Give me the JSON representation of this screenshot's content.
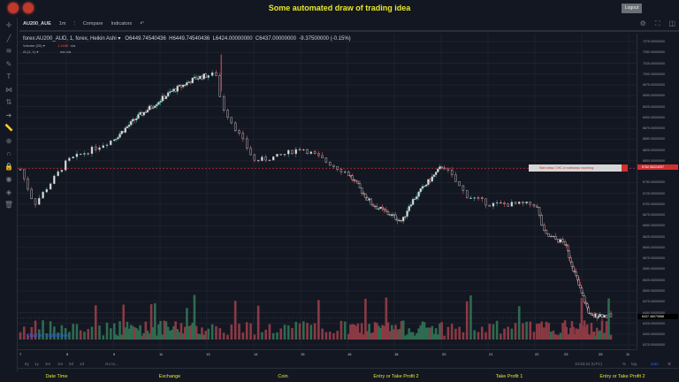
{
  "header": {
    "title": "Some automated draw of trading idea",
    "logout": "Logout"
  },
  "toolbar": {
    "symbol": "AU200_AUE",
    "interval": "1m",
    "compare": "Compare",
    "indicators": "Indicators"
  },
  "legend": {
    "main": "forex:AU200_AUD, 1, forex, Heikin Ashi",
    "open": "O6449.74540436",
    "high": "H6449.74540436",
    "low": "L6424.00000000",
    "close": "C6437.00000000",
    "change": "-9.37500000 (-0.15%)",
    "volume": "Volume (20)",
    "volume_value": "1.4180",
    "volume_na": "n/a",
    "ai": "AI (1, 1)",
    "ai_na": "n/a  n/a"
  },
  "annotation": {
    "text": "Start draw, CHC or sideways incoming",
    "line_price": "6782.96224097",
    "line_color": "#d32f2f"
  },
  "current_price": "6437.46073588",
  "price_axis": [
    "7075.00000000",
    "7050.00000000",
    "7025.00000000",
    "7000.00000000",
    "6975.00000000",
    "6950.00000000",
    "6925.00000000",
    "6900.00000000",
    "6875.00000000",
    "6850.00000000",
    "6825.00000000",
    "6800.00000000",
    "6750.00000000",
    "6725.00000000",
    "6700.00000000",
    "6675.00000000",
    "6650.00000000",
    "6625.00000000",
    "6600.00000000",
    "6575.00000000",
    "6550.00000000",
    "6525.00000000",
    "6500.00000000",
    "6475.00000000",
    "6450.00000000",
    "6425.00000000",
    "6400.00000000",
    "6375.00000000"
  ],
  "time_axis": [
    "7",
    "8",
    "9",
    "11",
    "13",
    "14",
    "15",
    "16",
    "18",
    "20",
    "21",
    "22",
    "23",
    "25",
    "11"
  ],
  "watermark": "Chart by TradingView",
  "bottom_bar": {
    "ranges": [
      "5y",
      "1y",
      "3m",
      "1m",
      "5d",
      "1d"
    ],
    "goto": "Go to...",
    "time": "10:53:24 (UTC)",
    "percent": "%",
    "log": "log",
    "auto": "auto"
  },
  "footer": [
    "Date Time",
    "Exchange",
    "Coin",
    "Entry or Take Profit 2",
    "Take Profit 1",
    "Entry or Take Profit 2"
  ],
  "colors": {
    "up": "#26a69a",
    "down": "#ef5350",
    "accent": "#e8e82a"
  },
  "chart_data": {
    "type": "candlestick",
    "style": "Heikin Ashi",
    "x_labels": [
      "7",
      "8",
      "9",
      "11",
      "13",
      "14",
      "15",
      "16",
      "18",
      "20",
      "21",
      "22",
      "23",
      "25",
      "11"
    ],
    "approx_close_path": [
      [
        7,
        6780
      ],
      [
        7.3,
        6700
      ],
      [
        8,
        6800
      ],
      [
        9,
        6850
      ],
      [
        10,
        6900
      ],
      [
        11.5,
        6960
      ],
      [
        12.5,
        6990
      ],
      [
        13.2,
        7000
      ],
      [
        13.3,
        6930
      ],
      [
        14,
        6800
      ],
      [
        14.5,
        6810
      ],
      [
        15,
        6830
      ],
      [
        16,
        6770
      ],
      [
        17,
        6700
      ],
      [
        18.3,
        6660
      ],
      [
        18.6,
        6700
      ],
      [
        19.2,
        6740
      ],
      [
        20,
        6790
      ],
      [
        20.5,
        6720
      ],
      [
        21,
        6700
      ],
      [
        22,
        6700
      ],
      [
        22.3,
        6630
      ],
      [
        23,
        6610
      ],
      [
        24,
        6490
      ],
      [
        24.5,
        6440
      ],
      [
        25,
        6445
      ],
      [
        25.5,
        6440
      ]
    ],
    "ylim": [
      6375,
      7075
    ]
  }
}
